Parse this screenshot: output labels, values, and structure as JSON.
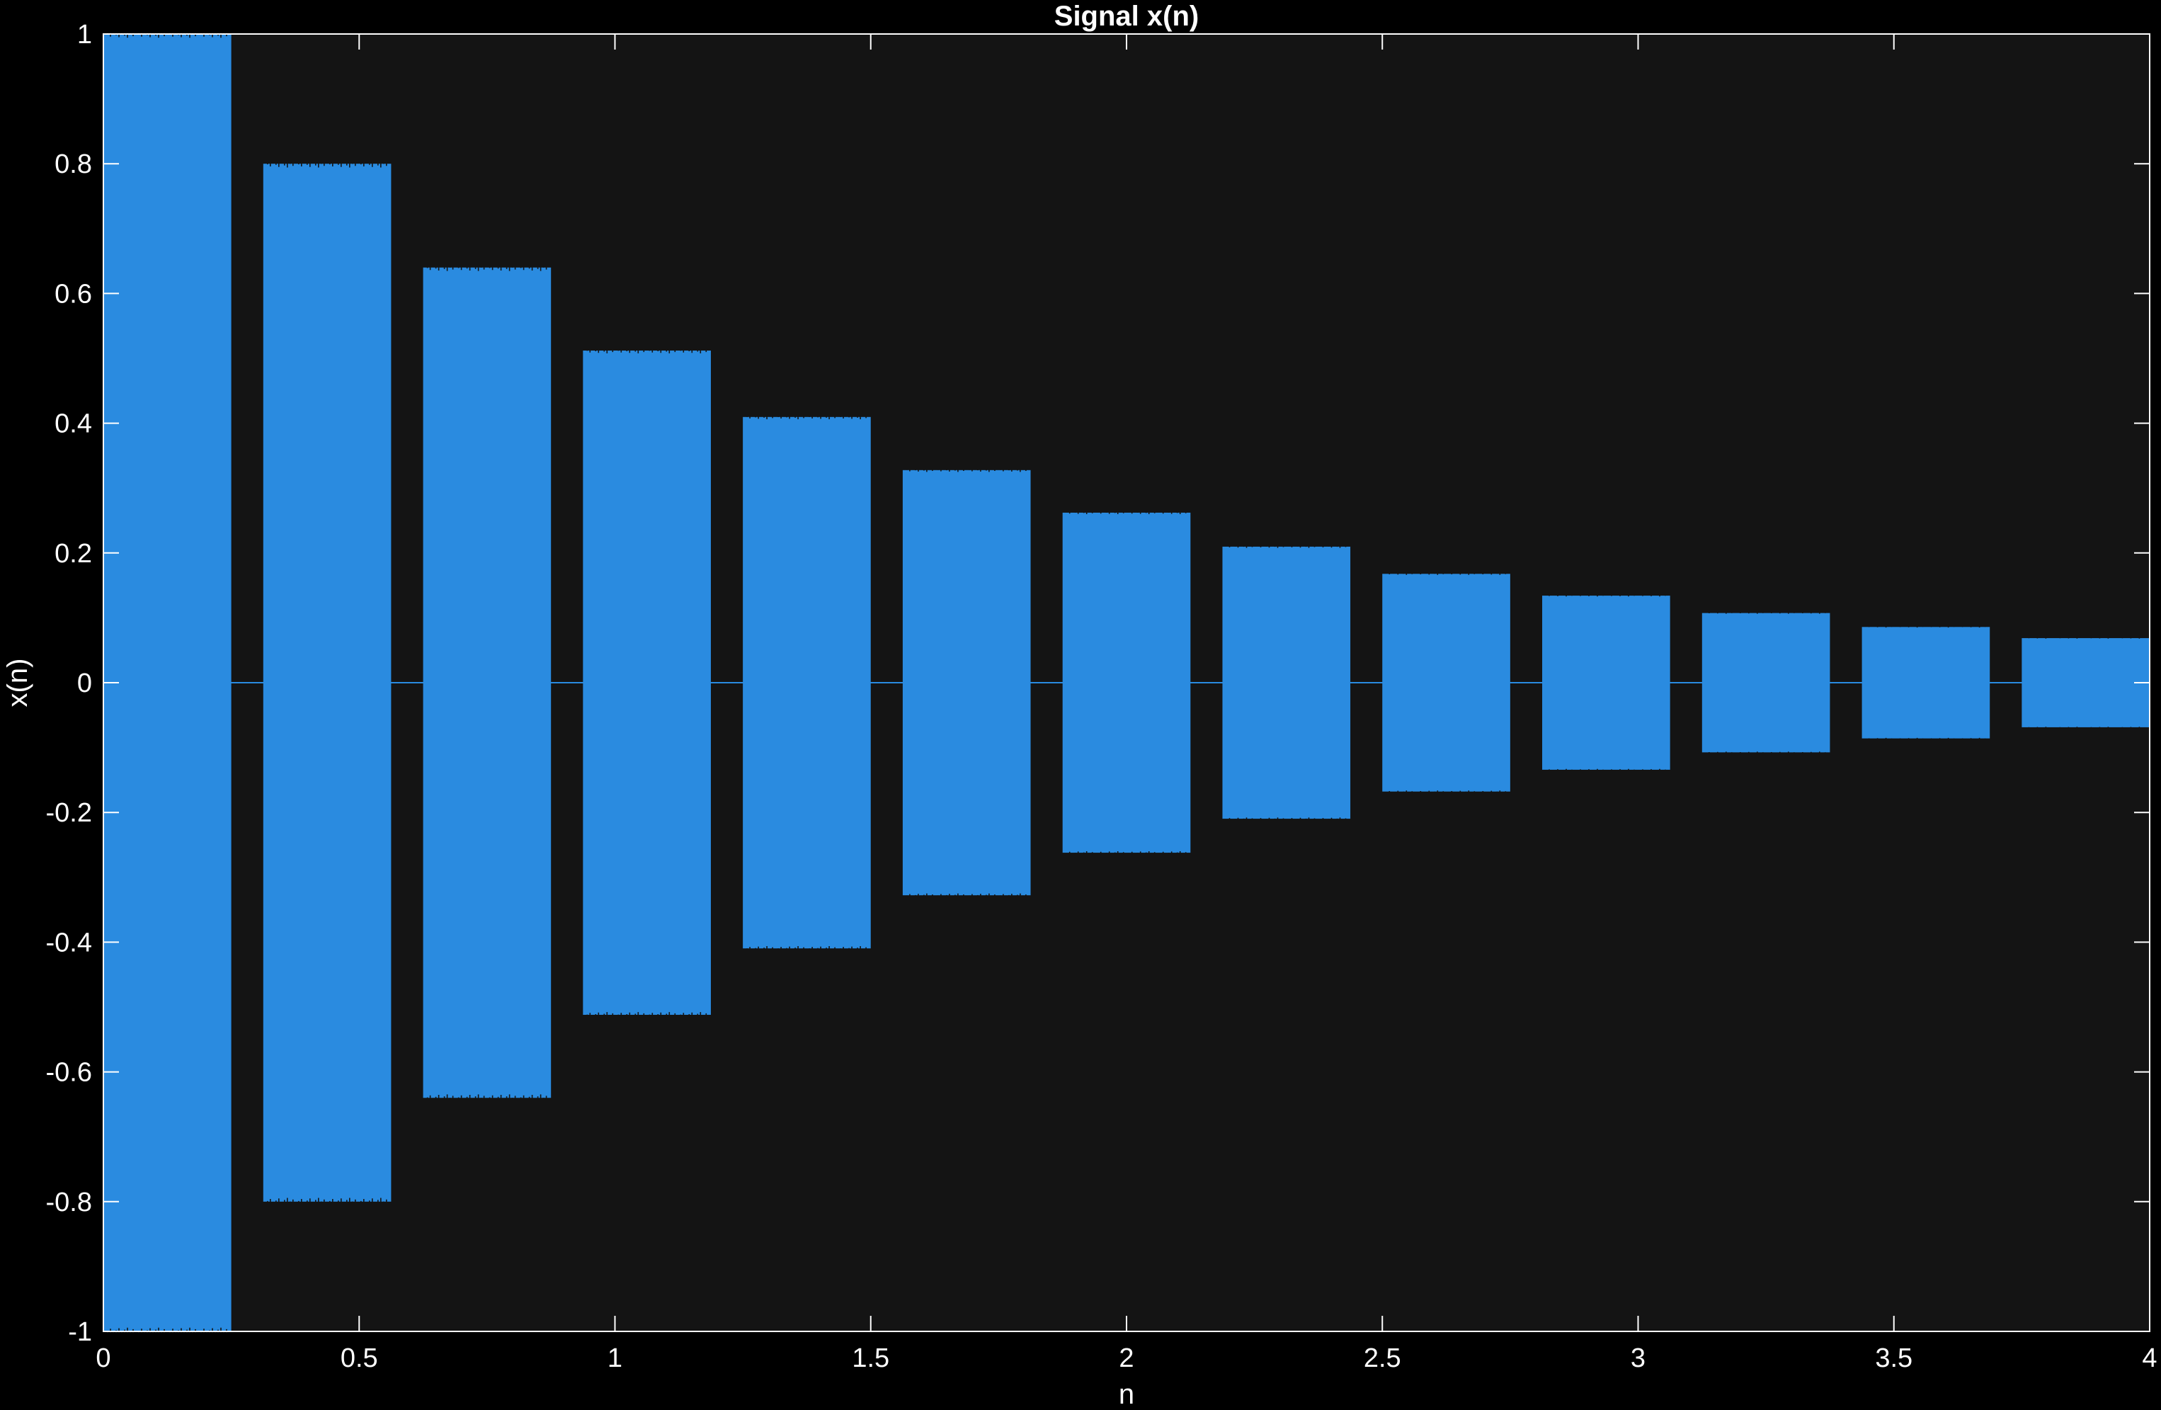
{
  "chart_data": {
    "type": "line",
    "title": "Signal x(n)",
    "xlabel": "n",
    "ylabel": "x(n)",
    "xlim": [
      0,
      4
    ],
    "ylim": [
      -1,
      1
    ],
    "xticks": [
      "0",
      "0.5",
      "1",
      "1.5",
      "2",
      "2.5",
      "3",
      "3.5",
      "4"
    ],
    "yticks": [
      "-1",
      "-0.8",
      "-0.6",
      "-0.4",
      "-0.2",
      "0",
      "0.2",
      "0.4",
      "0.6",
      "0.8",
      "1"
    ],
    "grid": false,
    "legend": "none",
    "series": [
      {
        "description_of_shape": "bursts",
        "bursts": [
          {
            "x_start": 0.0,
            "x_end": 0.25,
            "amplitude": 1.0
          },
          {
            "x_start": 0.3125,
            "x_end": 0.5625,
            "amplitude": 0.8
          },
          {
            "x_start": 0.625,
            "x_end": 0.875,
            "amplitude": 0.64
          },
          {
            "x_start": 0.9375,
            "x_end": 1.1875,
            "amplitude": 0.512
          },
          {
            "x_start": 1.25,
            "x_end": 1.5,
            "amplitude": 0.4096
          },
          {
            "x_start": 1.5625,
            "x_end": 1.8125,
            "amplitude": 0.3277
          },
          {
            "x_start": 1.875,
            "x_end": 2.125,
            "amplitude": 0.2621
          },
          {
            "x_start": 2.1875,
            "x_end": 2.4375,
            "amplitude": 0.2097
          },
          {
            "x_start": 2.5,
            "x_end": 2.75,
            "amplitude": 0.1678
          },
          {
            "x_start": 2.8125,
            "x_end": 3.0625,
            "amplitude": 0.1342
          },
          {
            "x_start": 3.125,
            "x_end": 3.375,
            "amplitude": 0.1074
          },
          {
            "x_start": 3.4375,
            "x_end": 3.6875,
            "amplitude": 0.0859
          },
          {
            "x_start": 3.75,
            "x_end": 4.0,
            "amplitude": 0.0687
          }
        ]
      }
    ],
    "colors": {
      "series": "#2a8be0",
      "figure_background": "#000000",
      "axes_background": "#141414",
      "axes": "#ffffff",
      "text": "#ffffff"
    }
  }
}
